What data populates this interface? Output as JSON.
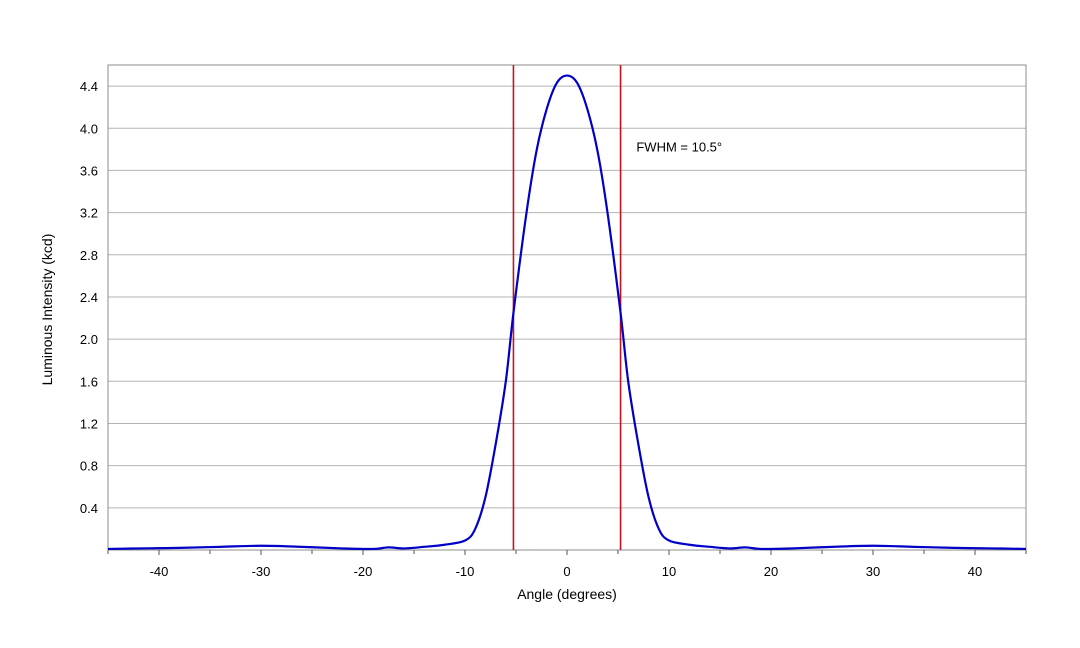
{
  "chart_data": {
    "type": "line",
    "title": "",
    "xlabel": "Angle (degrees)",
    "ylabel": "Luminous Intensity (kcd)",
    "xlim": [
      -45,
      45
    ],
    "ylim": [
      0,
      4.6
    ],
    "grid": "horizontal",
    "legend": "none",
    "x_ticks": [
      -40,
      -30,
      -20,
      -10,
      0,
      10,
      20,
      30,
      40
    ],
    "x_tick_labels": [
      "-40",
      "-30",
      "-20",
      "-10",
      "0",
      "10",
      "20",
      "30",
      "40"
    ],
    "y_ticks": [
      0.4,
      0.8,
      1.2,
      1.6,
      2.0,
      2.4,
      2.8,
      3.2,
      3.6,
      4.0,
      4.4
    ],
    "y_tick_labels": [
      "0.4",
      "0.8",
      "1.2",
      "1.6",
      "2.0",
      "2.4",
      "2.8",
      "3.2",
      "3.6",
      "4.0",
      "4.4"
    ],
    "series": [
      {
        "color": "#0000c8",
        "x": [
          -45,
          -42,
          -38,
          -34,
          -30,
          -26,
          -22,
          -19,
          -17.5,
          -16,
          -14,
          -12,
          -10,
          -9,
          -8,
          -7,
          -6,
          -5.25,
          -4,
          -3,
          -2,
          -1,
          0,
          1,
          2,
          3,
          4,
          5.25,
          6,
          7,
          8,
          9,
          10,
          12,
          14,
          16,
          17.5,
          19,
          22,
          26,
          30,
          34,
          38,
          42,
          45
        ],
        "values": [
          0.01,
          0.015,
          0.02,
          0.03,
          0.04,
          0.03,
          0.015,
          0.01,
          0.025,
          0.015,
          0.03,
          0.05,
          0.09,
          0.2,
          0.5,
          1.0,
          1.6,
          2.25,
          3.18,
          3.78,
          4.18,
          4.43,
          4.5,
          4.43,
          4.18,
          3.78,
          3.18,
          2.25,
          1.6,
          1.0,
          0.5,
          0.2,
          0.09,
          0.05,
          0.03,
          0.015,
          0.025,
          0.01,
          0.015,
          0.03,
          0.04,
          0.03,
          0.02,
          0.015,
          0.01
        ]
      }
    ],
    "vlines": [
      {
        "x": -5.25,
        "color": "#c0141e"
      },
      {
        "x": 5.25,
        "color": "#c0141e"
      }
    ],
    "annotations": [
      {
        "text": "FWHM = 10.5°",
        "x": 6.8,
        "y": 3.78
      }
    ],
    "colors": {
      "grid": "#b4b4b4",
      "frame": "#8c8c8c",
      "curve": "#0000c8",
      "marker_lines": "#c0141e"
    }
  }
}
